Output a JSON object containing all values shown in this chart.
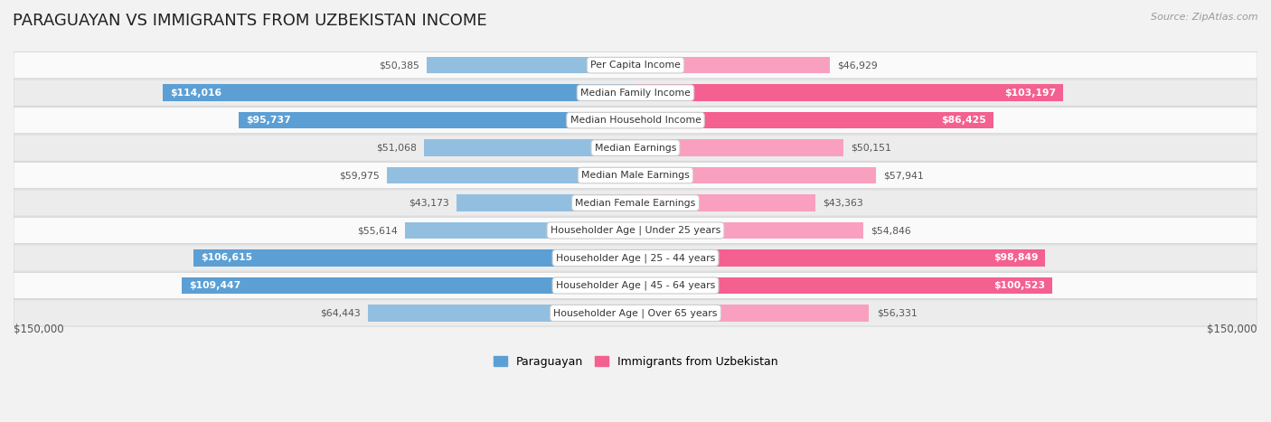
{
  "title": "PARAGUAYAN VS IMMIGRANTS FROM UZBEKISTAN INCOME",
  "source": "Source: ZipAtlas.com",
  "categories": [
    "Per Capita Income",
    "Median Family Income",
    "Median Household Income",
    "Median Earnings",
    "Median Male Earnings",
    "Median Female Earnings",
    "Householder Age | Under 25 years",
    "Householder Age | 25 - 44 years",
    "Householder Age | 45 - 64 years",
    "Householder Age | Over 65 years"
  ],
  "paraguayan": [
    50385,
    114016,
    95737,
    51068,
    59975,
    43173,
    55614,
    106615,
    109447,
    64443
  ],
  "uzbekistan": [
    46929,
    103197,
    86425,
    50151,
    57941,
    43363,
    54846,
    98849,
    100523,
    56331
  ],
  "paraguayan_labels": [
    "$50,385",
    "$114,016",
    "$95,737",
    "$51,068",
    "$59,975",
    "$43,173",
    "$55,614",
    "$106,615",
    "$109,447",
    "$64,443"
  ],
  "uzbekistan_labels": [
    "$46,929",
    "$103,197",
    "$86,425",
    "$50,151",
    "$57,941",
    "$43,363",
    "$54,846",
    "$98,849",
    "$100,523",
    "$56,331"
  ],
  "paraguayan_inside": [
    false,
    true,
    true,
    false,
    false,
    false,
    false,
    true,
    true,
    false
  ],
  "uzbekistan_inside": [
    false,
    true,
    true,
    false,
    false,
    false,
    false,
    true,
    true,
    false
  ],
  "max_val": 150000,
  "bar_color_paraguayan": "#92bfe0",
  "bar_color_uzbekistan": "#f9a0c0",
  "bar_color_paraguayan_bold": "#5b9fd4",
  "bar_color_uzbekistan_bold": "#f46090",
  "bg_color": "#f2f2f2",
  "row_bg_colors": [
    "#fafafa",
    "#ececec",
    "#fafafa",
    "#ececec",
    "#fafafa",
    "#ececec",
    "#fafafa",
    "#ececec",
    "#fafafa",
    "#ececec"
  ],
  "title_fontsize": 13,
  "bar_height": 0.6,
  "x_label_left": "$150,000",
  "x_label_right": "$150,000"
}
